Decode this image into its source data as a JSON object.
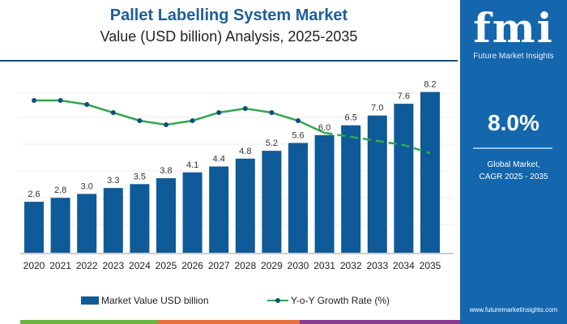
{
  "header": {
    "title": "Pallet Labelling System Market",
    "subtitle": "Value (USD billion) Analysis, 2025-2035"
  },
  "panel": {
    "logo_text": "fmi",
    "logo_sub": "Future Market Insights",
    "cagr": "8.0%",
    "cagr_label_1": "Global Market,",
    "cagr_label_2": "CAGR 2025 - 2035",
    "url": "www.futuremarketinsights.com"
  },
  "colors": {
    "bar": "#0f5a98",
    "line": "#2fa84f",
    "marker": "#0f4c81",
    "panel": "#1466ad"
  },
  "chart_data": {
    "type": "bar+line",
    "categories": [
      "2020",
      "2021",
      "2022",
      "2023",
      "2024",
      "2025",
      "2026",
      "2027",
      "2028",
      "2029",
      "2030",
      "2031",
      "2032",
      "2033",
      "2034",
      "2035"
    ],
    "series": [
      {
        "name": "Market Value USD billion",
        "type": "bar",
        "values": [
          2.6,
          2.8,
          3.0,
          3.3,
          3.5,
          3.8,
          4.1,
          4.4,
          4.8,
          5.2,
          5.6,
          6.0,
          6.5,
          7.0,
          7.6,
          8.2
        ],
        "labels": [
          "2.6",
          "2.8",
          "3.0",
          "3.3",
          "3.5",
          "3.8",
          "4.1",
          "4.4",
          "4.8",
          "5.2",
          "5.6",
          "6.0",
          "6.5",
          "7.0",
          "7.6",
          "8.2"
        ]
      },
      {
        "name": "Y-o-Y Growth Rate (%)",
        "type": "line",
        "values": [
          8.4,
          8.4,
          8.3,
          8.1,
          7.9,
          7.8,
          7.9,
          8.1,
          8.2,
          8.1,
          7.9,
          7.6,
          7.5,
          7.4,
          7.3,
          7.1
        ],
        "dashed_from": "2031"
      }
    ],
    "grid": true,
    "legend": "bottom"
  }
}
